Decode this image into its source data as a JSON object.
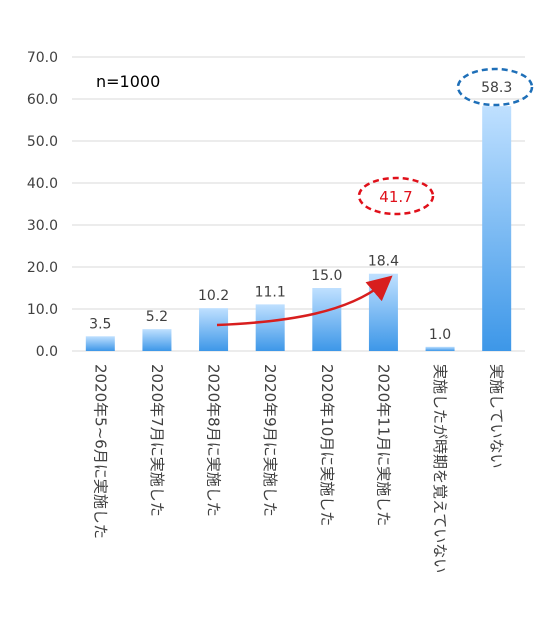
{
  "chart_data": {
    "type": "bar",
    "categories": [
      "2020年5~6月に実施した",
      "2020年7月に実施した",
      "2020年8月に実施した",
      "2020年9月に実施した",
      "2020年10月に実施した",
      "2020年11月に実施した",
      "実施したが時期を覚えていない",
      "実施していない"
    ],
    "values": [
      3.5,
      5.2,
      10.2,
      11.1,
      15.0,
      18.4,
      1.0,
      58.3
    ],
    "value_labels": [
      "3.5",
      "5.2",
      "10.2",
      "11.1",
      "15.0",
      "18.4",
      "1.0",
      "58.3"
    ],
    "yticks": [
      "0.0",
      "10.0",
      "20.0",
      "30.0",
      "40.0",
      "50.0",
      "60.0",
      "70.0"
    ],
    "ylim": [
      0,
      70
    ],
    "grid": true,
    "legend": "none",
    "annotations": {
      "sample_size": "n=1000",
      "cumulative_total": "41.7"
    },
    "colors": {
      "bar_top": "#BFE0FF",
      "bar_bottom": "#3D97E8",
      "grid": "#D9D9D9",
      "arrow": "#D81E1E",
      "cumulative_circle": "#E0101A",
      "no_circle": "#1E6FB8",
      "text": "#404040"
    }
  }
}
